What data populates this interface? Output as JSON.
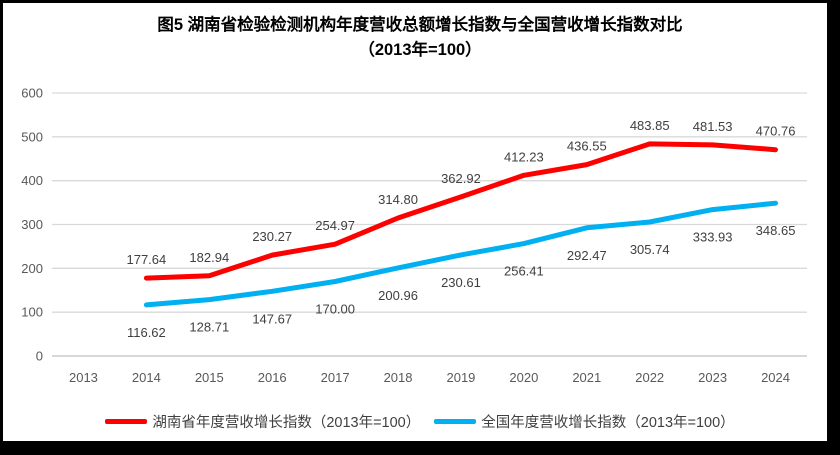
{
  "title": {
    "line1": "图5 湖南省检验检测机构年度营收总额增长指数与全国营收增长指数对比",
    "line2": "（2013年=100）"
  },
  "colors": {
    "hunan_line": "#FF0000",
    "national_line": "#00B0F0",
    "gridline": "#D9D9D9",
    "axis_line": "#BFBFBF",
    "axis_text": "#595959",
    "data_label_text": "#404040",
    "frame_border": "#000000",
    "background": "#FFFFFF"
  },
  "legend": [
    {
      "label": "湖南省年度营收增长指数（2013年=100）",
      "color": "#FF0000"
    },
    {
      "label": "全国年度营收增长指数（2013年=100）",
      "color": "#00B0F0"
    }
  ],
  "chart_data": {
    "type": "line",
    "title": "图5 湖南省检验检测机构年度营收总额增长指数与全国营收增长指数对比（2013年=100）",
    "categories": [
      "2013",
      "2014",
      "2015",
      "2016",
      "2017",
      "2018",
      "2019",
      "2020",
      "2021",
      "2022",
      "2023",
      "2024"
    ],
    "series": [
      {
        "name": "湖南省年度营收增长指数（2013年=100）",
        "color": "#FF0000",
        "label_position": "above",
        "values": [
          null,
          177.64,
          182.94,
          230.27,
          254.97,
          314.8,
          362.92,
          412.23,
          436.55,
          483.85,
          481.53,
          470.76
        ]
      },
      {
        "name": "全国年度营收增长指数（2013年=100）",
        "color": "#00B0F0",
        "label_position": "below",
        "values": [
          null,
          116.62,
          128.71,
          147.67,
          170.0,
          200.96,
          230.61,
          256.41,
          292.47,
          305.74,
          333.93,
          348.65
        ]
      }
    ],
    "xlabel": "",
    "ylabel": "",
    "ylim": [
      0,
      600
    ],
    "yticks": [
      0,
      100,
      200,
      300,
      400,
      500,
      600
    ],
    "grid": true,
    "data_labels": true,
    "legend_position": "bottom"
  }
}
